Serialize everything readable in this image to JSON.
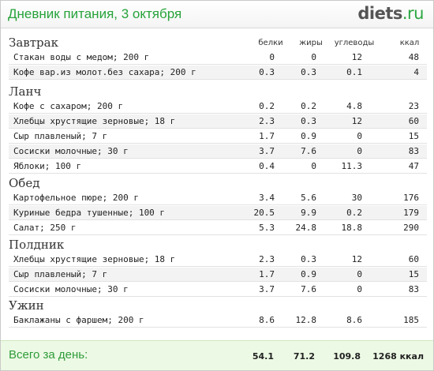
{
  "header": {
    "title": "Дневник питания, 3 октября",
    "logo_main": "diets",
    "logo_suffix": ".ru"
  },
  "columns": {
    "proteins": "белки",
    "fats": "жиры",
    "carbs": "углеводы",
    "kcal": "ккал"
  },
  "meals": [
    {
      "name": "Завтрак",
      "items": [
        {
          "food": "Стакан воды с медом; 200 г",
          "proteins": "0",
          "fats": "0",
          "carbs": "12",
          "kcal": "48"
        },
        {
          "food": "Кофе вар.из молот.без сахара; 200 г",
          "proteins": "0.3",
          "fats": "0.3",
          "carbs": "0.1",
          "kcal": "4"
        }
      ]
    },
    {
      "name": "Ланч",
      "items": [
        {
          "food": "Кофе с сахаром; 200 г",
          "proteins": "0.2",
          "fats": "0.2",
          "carbs": "4.8",
          "kcal": "23"
        },
        {
          "food": "Хлебцы хрустящие зерновые; 18 г",
          "proteins": "2.3",
          "fats": "0.3",
          "carbs": "12",
          "kcal": "60"
        },
        {
          "food": "Сыр плавленый; 7 г",
          "proteins": "1.7",
          "fats": "0.9",
          "carbs": "0",
          "kcal": "15"
        },
        {
          "food": "Сосиски молочные; 30 г",
          "proteins": "3.7",
          "fats": "7.6",
          "carbs": "0",
          "kcal": "83"
        },
        {
          "food": "Яблоки; 100 г",
          "proteins": "0.4",
          "fats": "0",
          "carbs": "11.3",
          "kcal": "47"
        }
      ]
    },
    {
      "name": "Обед",
      "items": [
        {
          "food": "Картофельное пюре; 200 г",
          "proteins": "3.4",
          "fats": "5.6",
          "carbs": "30",
          "kcal": "176"
        },
        {
          "food": "Куриные бедра тушенные; 100 г",
          "proteins": "20.5",
          "fats": "9.9",
          "carbs": "0.2",
          "kcal": "179"
        },
        {
          "food": "Салат; 250 г",
          "proteins": "5.3",
          "fats": "24.8",
          "carbs": "18.8",
          "kcal": "290"
        }
      ]
    },
    {
      "name": "Полдник",
      "items": [
        {
          "food": "Хлебцы хрустящие зерновые; 18 г",
          "proteins": "2.3",
          "fats": "0.3",
          "carbs": "12",
          "kcal": "60"
        },
        {
          "food": "Сыр плавленый; 7 г",
          "proteins": "1.7",
          "fats": "0.9",
          "carbs": "0",
          "kcal": "15"
        },
        {
          "food": "Сосиски молочные; 30 г",
          "proteins": "3.7",
          "fats": "7.6",
          "carbs": "0",
          "kcal": "83"
        }
      ]
    },
    {
      "name": "Ужин",
      "items": [
        {
          "food": "Баклажаны с фаршем; 200 г",
          "proteins": "8.6",
          "fats": "12.8",
          "carbs": "8.6",
          "kcal": "185"
        }
      ]
    }
  ],
  "footer": {
    "label": "Всего за день:",
    "proteins": "54.1",
    "fats": "71.2",
    "carbs": "109.8",
    "kcal": "1268 ккал"
  }
}
